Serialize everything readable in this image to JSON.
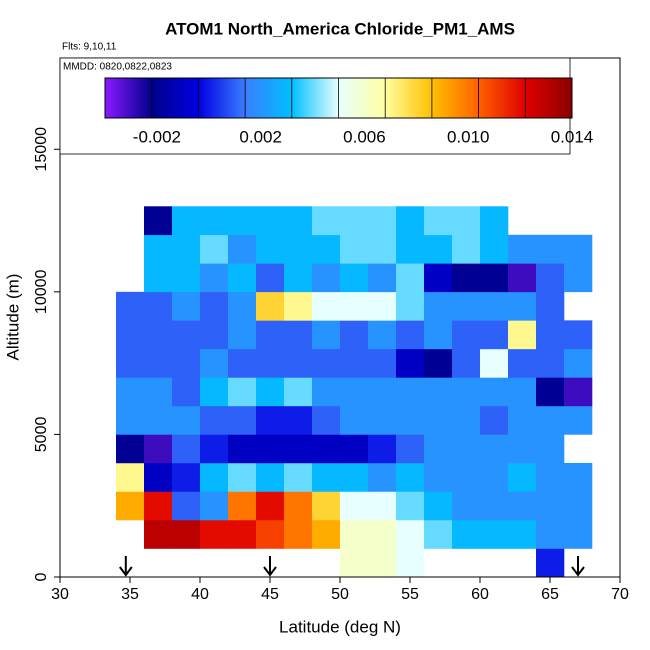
{
  "chart_data": {
    "type": "heatmap",
    "title": "ATOM1 North_America Chloride_PM1_AMS",
    "subtitle": "Flts: 9,10,11",
    "annotation": "MMDD: 0820,0822,0823",
    "x_label": "Latitude (deg N)",
    "y_label": "Altitude (m)",
    "xlim": [
      30,
      70
    ],
    "xticks": [
      30,
      35,
      40,
      45,
      50,
      55,
      60,
      65,
      70
    ],
    "ylim": [
      0,
      18200
    ],
    "yticks": [
      0,
      5000,
      10000,
      15000
    ],
    "arrows": [
      34.7,
      45,
      67
    ],
    "x_bins": [
      34,
      36,
      38,
      40,
      42,
      44,
      46,
      48,
      50,
      52,
      54,
      56,
      58,
      60,
      62,
      64,
      66,
      68
    ],
    "y_bins": [
      0,
      1000,
      2000,
      3000,
      4000,
      5000,
      6000,
      7000,
      8000,
      9000,
      10000,
      11000,
      12000,
      13000
    ],
    "zlim": [
      -0.004,
      0.014
    ],
    "colors": [
      "#8a1aff",
      "#00008b",
      "#0000e0",
      "#3a7dff",
      "#00bfff",
      "#e8ffff",
      "#ffffa0",
      "#ffc000",
      "#ff6000",
      "#e00000",
      "#8b0000"
    ],
    "colorbar_ticks": [
      -0.002,
      0.002,
      0.006,
      {
        "value": 0.01,
        "label": "0.010"
      },
      0.014
    ],
    "z": [
      [
        null,
        null,
        null,
        null,
        null,
        null,
        null,
        null,
        0.006,
        0.006,
        0.005,
        null,
        null,
        null,
        null,
        0.0,
        null
      ],
      [
        null,
        0.013,
        0.013,
        0.012,
        0.012,
        0.011,
        0.01,
        0.009,
        0.006,
        0.006,
        0.005,
        0.004,
        0.003,
        0.003,
        0.003,
        0.002,
        0.002
      ],
      [
        0.009,
        0.012,
        0.001,
        0.002,
        0.01,
        0.012,
        0.01,
        0.008,
        0.005,
        0.005,
        0.004,
        0.003,
        0.002,
        0.002,
        0.002,
        0.002,
        0.002
      ],
      [
        0.007,
        -0.001,
        0.0,
        0.003,
        0.004,
        0.003,
        0.004,
        0.003,
        0.003,
        0.002,
        0.003,
        0.002,
        0.002,
        0.002,
        0.003,
        0.002,
        0.002
      ],
      [
        -0.002,
        -0.003,
        0.001,
        0.0,
        -0.001,
        -0.001,
        -0.001,
        -0.001,
        -0.001,
        0.0,
        0.001,
        0.002,
        0.002,
        0.002,
        0.002,
        0.002,
        null
      ],
      [
        0.002,
        0.002,
        0.002,
        0.001,
        0.001,
        0.0,
        0.0,
        0.001,
        0.002,
        0.002,
        0.002,
        0.002,
        0.002,
        0.001,
        0.002,
        0.002,
        0.002
      ],
      [
        0.002,
        0.002,
        0.001,
        0.003,
        0.004,
        0.003,
        0.004,
        0.002,
        0.002,
        0.002,
        0.002,
        0.002,
        0.002,
        0.002,
        0.002,
        -0.002,
        -0.003
      ],
      [
        0.001,
        0.001,
        0.001,
        0.002,
        0.001,
        0.001,
        0.001,
        0.001,
        0.001,
        0.001,
        -0.001,
        -0.002,
        0.001,
        0.005,
        0.001,
        0.001,
        0.002
      ],
      [
        0.001,
        0.001,
        0.001,
        0.001,
        0.002,
        0.001,
        0.001,
        0.002,
        0.001,
        0.002,
        0.001,
        0.002,
        0.001,
        0.001,
        0.007,
        0.001,
        0.001
      ],
      [
        0.001,
        0.001,
        0.002,
        0.001,
        0.002,
        0.008,
        0.007,
        0.005,
        0.005,
        0.005,
        0.004,
        0.002,
        0.002,
        0.002,
        0.002,
        0.001,
        null
      ],
      [
        null,
        0.003,
        0.003,
        0.002,
        0.003,
        0.001,
        0.003,
        0.002,
        0.003,
        0.002,
        0.004,
        -0.001,
        -0.002,
        -0.002,
        -0.003,
        0.001,
        0.002
      ],
      [
        null,
        0.003,
        0.003,
        0.004,
        0.002,
        0.003,
        0.003,
        0.003,
        0.004,
        0.004,
        0.003,
        0.003,
        0.004,
        0.003,
        0.002,
        0.002,
        0.002
      ],
      [
        null,
        -0.002,
        0.003,
        0.003,
        0.003,
        0.003,
        0.003,
        0.004,
        0.004,
        0.004,
        0.003,
        0.004,
        0.004,
        0.003,
        null,
        null,
        null
      ]
    ]
  }
}
